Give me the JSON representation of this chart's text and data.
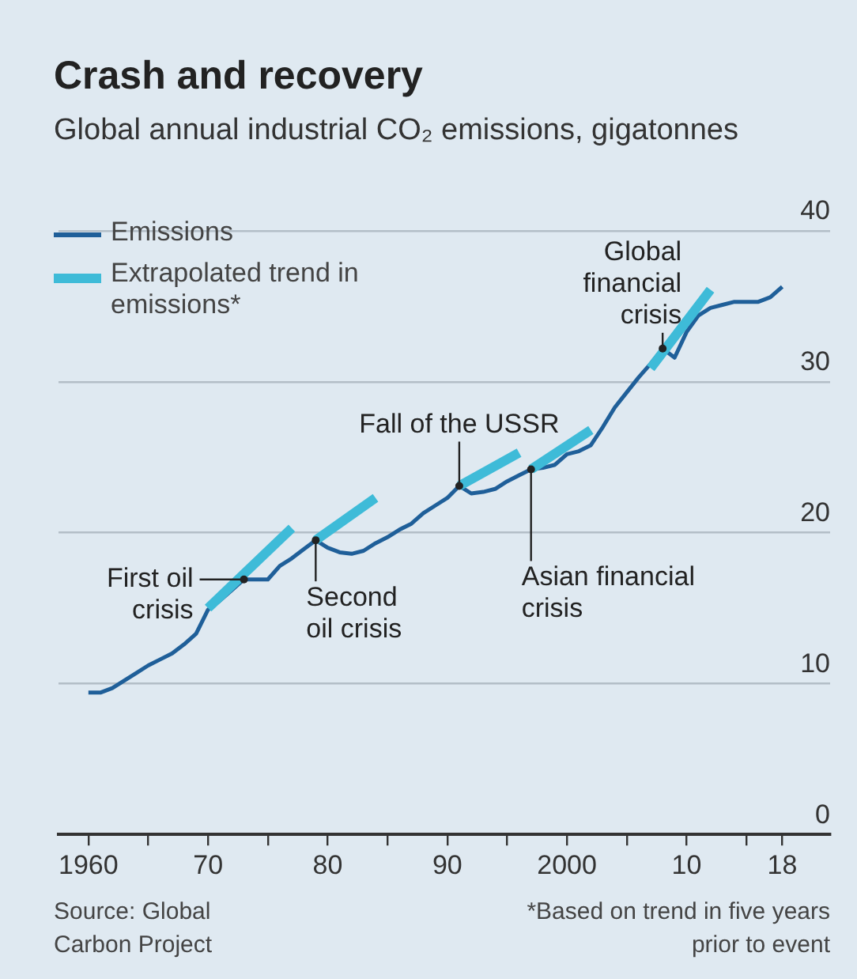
{
  "chart_data": {
    "type": "line",
    "title": "Crash and recovery",
    "subtitle": "Global annual industrial CO₂ emissions, gigatonnes",
    "x": [
      1960,
      1961,
      1962,
      1963,
      1964,
      1965,
      1966,
      1967,
      1968,
      1969,
      1970,
      1971,
      1972,
      1973,
      1974,
      1975,
      1976,
      1977,
      1978,
      1979,
      1980,
      1981,
      1982,
      1983,
      1984,
      1985,
      1986,
      1987,
      1988,
      1989,
      1990,
      1991,
      1992,
      1993,
      1994,
      1995,
      1996,
      1997,
      1998,
      1999,
      2000,
      2001,
      2002,
      2003,
      2004,
      2005,
      2006,
      2007,
      2008,
      2009,
      2010,
      2011,
      2012,
      2013,
      2014,
      2015,
      2016,
      2017,
      2018
    ],
    "series": [
      {
        "name": "Emissions",
        "color": "#1f5f99",
        "values": [
          9.4,
          9.4,
          9.7,
          10.2,
          10.7,
          11.2,
          11.6,
          12.0,
          12.6,
          13.3,
          14.9,
          15.5,
          16.2,
          16.9,
          16.9,
          16.9,
          17.8,
          18.3,
          18.9,
          19.5,
          19.0,
          18.7,
          18.6,
          18.8,
          19.3,
          19.7,
          20.2,
          20.6,
          21.3,
          21.8,
          22.3,
          23.1,
          22.6,
          22.7,
          22.9,
          23.4,
          23.8,
          24.2,
          24.3,
          24.5,
          25.2,
          25.4,
          25.8,
          27.0,
          28.3,
          29.3,
          30.3,
          31.2,
          32.2,
          31.6,
          33.3,
          34.4,
          34.9,
          35.1,
          35.3,
          35.3,
          35.3,
          35.6,
          36.3
        ]
      },
      {
        "name": "Extrapolated trend in emissions*",
        "color": "#3ebbd8",
        "x": [
          1970,
          1977,
          1978,
          1979,
          1984,
          1985,
          1991,
          1996,
          1996.5,
          1997,
          2002,
          2003,
          2007,
          2012
        ],
        "values": [
          15.0,
          20.3,
          null,
          19.5,
          22.3,
          null,
          23.1,
          25.3,
          null,
          24.2,
          26.8,
          null,
          30.9,
          36.1
        ]
      }
    ],
    "xlim": [
      1957.5,
      2022
    ],
    "xticks": [
      {
        "value": 1960,
        "label": "1960"
      },
      {
        "value": 1965,
        "label": null
      },
      {
        "value": 1970,
        "label": "70"
      },
      {
        "value": 1975,
        "label": null
      },
      {
        "value": 1980,
        "label": "80"
      },
      {
        "value": 1985,
        "label": null
      },
      {
        "value": 1990,
        "label": "90"
      },
      {
        "value": 1995,
        "label": null
      },
      {
        "value": 2000,
        "label": "2000"
      },
      {
        "value": 2005,
        "label": null
      },
      {
        "value": 2010,
        "label": "10"
      },
      {
        "value": 2015,
        "label": null
      },
      {
        "value": 2018,
        "label": "18"
      }
    ],
    "ylim": [
      0,
      40
    ],
    "yticks": [
      0,
      10,
      20,
      30,
      40
    ],
    "grid": "y",
    "legend": "top left",
    "marker": "none",
    "line_style": "solid",
    "annotations": [
      {
        "text": "First oil crisis",
        "x": 1973,
        "y": 16.9
      },
      {
        "text": "Second oil crisis",
        "x": 1979,
        "y": 19.5
      },
      {
        "text": "Fall of the USSR",
        "x": 1991,
        "y": 23.1
      },
      {
        "text": "Asian financial crisis",
        "x": 1997,
        "y": 24.2
      },
      {
        "text": "Global financial crisis",
        "x": 2008,
        "y": 32.2
      },
      "Source: Global Carbon Project",
      "*Based on trend in five years prior to event"
    ]
  }
}
